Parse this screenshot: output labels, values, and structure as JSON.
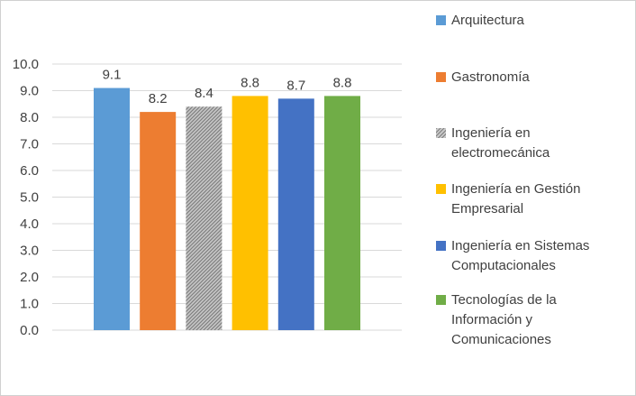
{
  "chart_data": {
    "type": "bar",
    "title": "",
    "xlabel": "",
    "ylabel": "",
    "ylim": [
      0,
      10
    ],
    "yticks": [
      "0.0",
      "1.0",
      "2.0",
      "3.0",
      "4.0",
      "5.0",
      "6.0",
      "7.0",
      "8.0",
      "9.0",
      "10.0"
    ],
    "grid": true,
    "legend_position": "right",
    "series": [
      {
        "name": "Arquitectura",
        "value": 9.1,
        "label": "9.1",
        "color": "#5b9bd5",
        "pattern": "solid"
      },
      {
        "name": "Gastronomía",
        "value": 8.2,
        "label": "8.2",
        "color": "#ed7d31",
        "pattern": "solid"
      },
      {
        "name": "Ingeniería en electromecánica",
        "value": 8.4,
        "label": "8.4",
        "color": "#a5a5a5",
        "pattern": "hatch"
      },
      {
        "name": "Ingeniería en Gestión Empresarial",
        "value": 8.8,
        "label": "8.8",
        "color": "#ffc000",
        "pattern": "solid"
      },
      {
        "name": "Ingeniería en Sistemas Computacionales",
        "value": 8.7,
        "label": "8.7",
        "color": "#4472c4",
        "pattern": "solid"
      },
      {
        "name": "Tecnologías de la Información y Comunicaciones",
        "value": 8.8,
        "label": "8.8",
        "color": "#70ad47",
        "pattern": "solid"
      }
    ]
  },
  "legend_lines": [
    [
      "Arquitectura"
    ],
    [
      "Gastronomía"
    ],
    [
      "Ingeniería en",
      "electromecánica"
    ],
    [
      "Ingeniería en Gestión",
      "Empresarial"
    ],
    [
      "Ingeniería en Sistemas",
      "Computacionales"
    ],
    [
      "Tecnologías de la",
      "Información y",
      "Comunicaciones"
    ]
  ]
}
